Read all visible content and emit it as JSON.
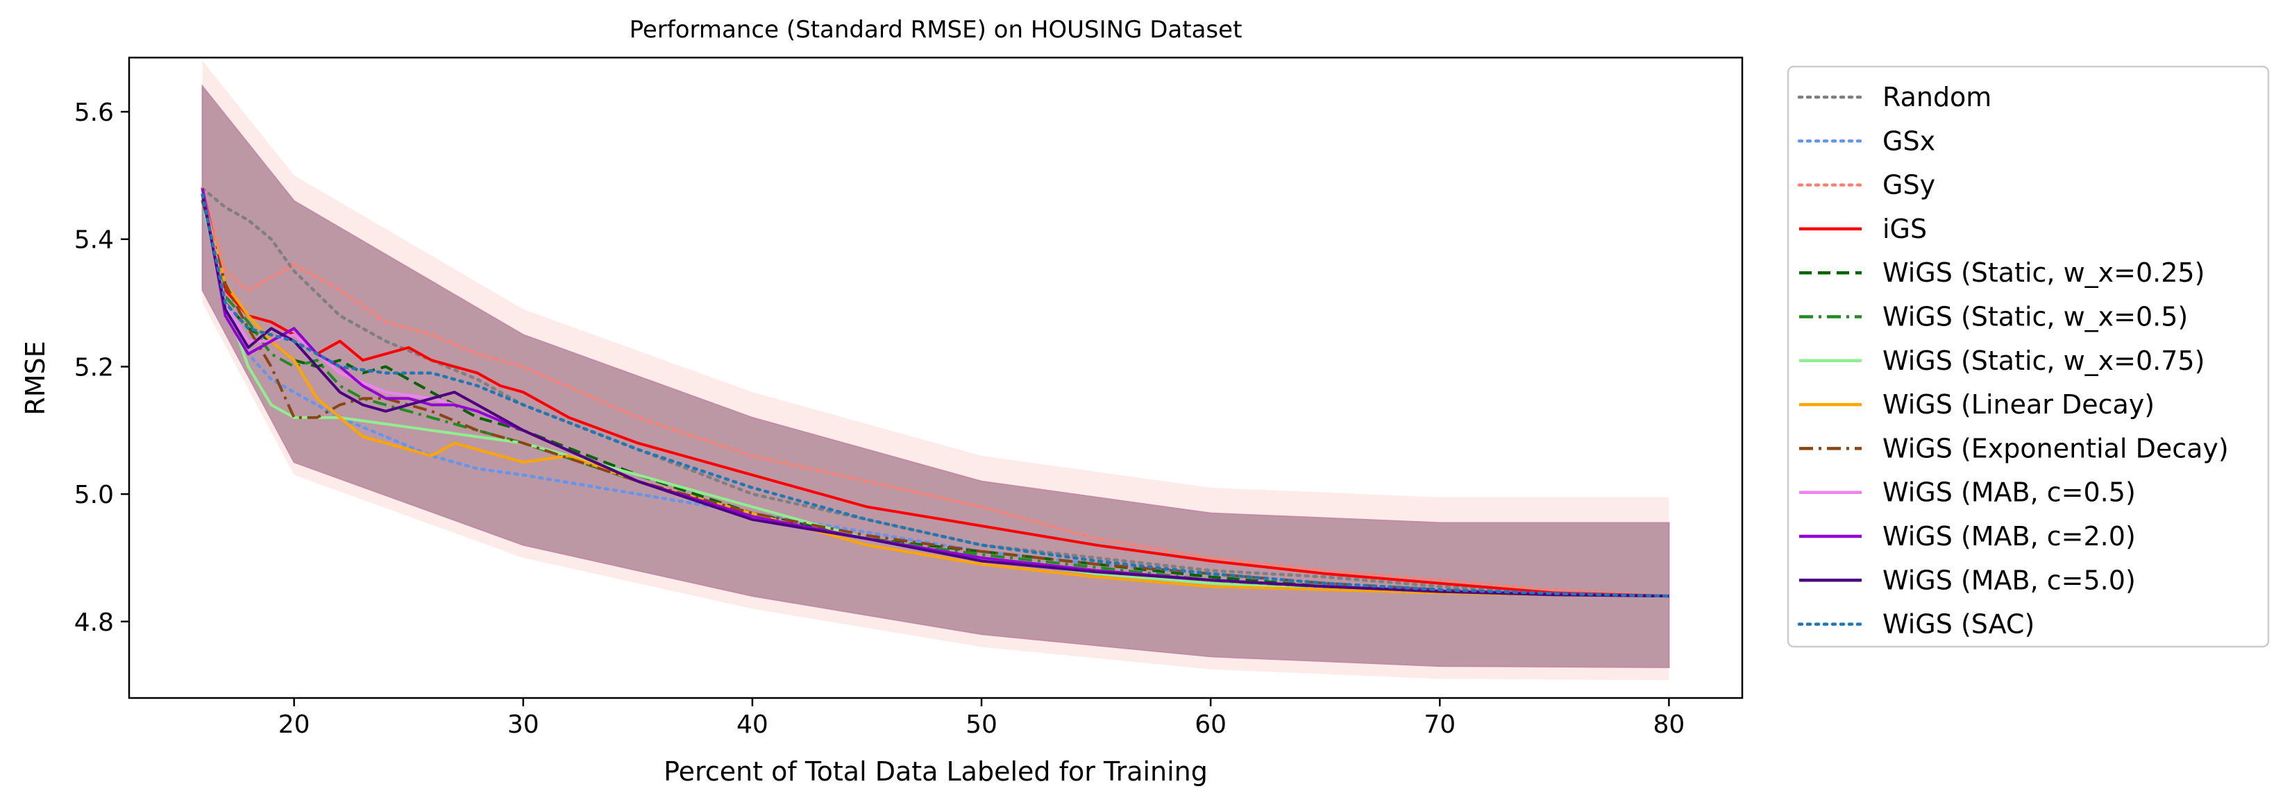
{
  "chart_data": {
    "type": "line",
    "title": "Performance (Standard RMSE) on HOUSING Dataset",
    "xlabel": "Percent of Total Data Labeled for Training",
    "ylabel": "RMSE",
    "xlim": [
      12.8,
      83.2
    ],
    "ylim": [
      4.68,
      5.685
    ],
    "xticks": [
      20,
      30,
      40,
      50,
      60,
      70,
      80
    ],
    "yticks": [
      4.8,
      5.0,
      5.2,
      5.4,
      5.6
    ],
    "xtick_labels": [
      "20",
      "30",
      "40",
      "50",
      "60",
      "70",
      "80"
    ],
    "ytick_labels": [
      "4.8",
      "5.0",
      "5.2",
      "5.4",
      "5.6"
    ],
    "grid": false,
    "legend_position": "outside-right",
    "shaded_band": {
      "description_in_chart": "standard deviation bands around each series",
      "upper": [
        [
          16,
          5.64
        ],
        [
          20,
          5.46
        ],
        [
          30,
          5.25
        ],
        [
          40,
          5.12
        ],
        [
          50,
          5.02
        ],
        [
          60,
          4.97
        ],
        [
          70,
          4.955
        ],
        [
          80,
          4.955
        ]
      ],
      "lower": [
        [
          16,
          5.32
        ],
        [
          20,
          5.05
        ],
        [
          30,
          4.92
        ],
        [
          40,
          4.84
        ],
        [
          50,
          4.78
        ],
        [
          60,
          4.745
        ],
        [
          70,
          4.73
        ],
        [
          80,
          4.728
        ]
      ]
    },
    "series": [
      {
        "name": "Random",
        "color": "#7f7f7f",
        "dash": "dotted",
        "x": [
          16,
          17,
          18,
          19,
          20,
          22,
          24,
          26,
          28,
          30,
          35,
          40,
          45,
          50,
          55,
          60,
          65,
          70,
          75,
          80
        ],
        "y": [
          5.48,
          5.45,
          5.43,
          5.4,
          5.35,
          5.28,
          5.24,
          5.21,
          5.18,
          5.14,
          5.07,
          5.0,
          4.96,
          4.92,
          4.9,
          4.88,
          4.87,
          4.855,
          4.845,
          4.84
        ]
      },
      {
        "name": "GSx",
        "color": "#6495ed",
        "dash": "dotted",
        "x": [
          16,
          17,
          18,
          19,
          20,
          22,
          24,
          26,
          28,
          30,
          35,
          40,
          45,
          50,
          55,
          60,
          65,
          70,
          75,
          80
        ],
        "y": [
          5.46,
          5.3,
          5.22,
          5.18,
          5.16,
          5.12,
          5.09,
          5.06,
          5.04,
          5.03,
          5.0,
          4.97,
          4.94,
          4.91,
          4.89,
          4.875,
          4.86,
          4.85,
          4.845,
          4.84
        ]
      },
      {
        "name": "GSy",
        "color": "#fa8072",
        "dash": "dotted",
        "x": [
          16,
          17,
          18,
          19,
          20,
          22,
          24,
          26,
          28,
          30,
          35,
          40,
          45,
          50,
          55,
          60,
          65,
          70,
          75,
          80
        ],
        "y": [
          5.48,
          5.35,
          5.32,
          5.34,
          5.36,
          5.32,
          5.27,
          5.25,
          5.22,
          5.2,
          5.12,
          5.06,
          5.02,
          4.98,
          4.93,
          4.9,
          4.88,
          4.865,
          4.85,
          4.84
        ]
      },
      {
        "name": "iGS",
        "color": "#ff0000",
        "dash": "solid",
        "x": [
          16,
          17,
          18,
          19,
          20,
          21,
          22,
          23,
          24,
          25,
          26,
          27,
          28,
          29,
          30,
          32,
          35,
          38,
          40,
          43,
          45,
          50,
          55,
          60,
          65,
          70,
          75,
          80
        ],
        "y": [
          5.48,
          5.32,
          5.28,
          5.27,
          5.25,
          5.22,
          5.24,
          5.21,
          5.22,
          5.23,
          5.21,
          5.2,
          5.19,
          5.17,
          5.16,
          5.12,
          5.08,
          5.05,
          5.03,
          5.0,
          4.98,
          4.95,
          4.92,
          4.895,
          4.875,
          4.86,
          4.845,
          4.84
        ]
      },
      {
        "name": "WiGS (Static, w_x=0.25)",
        "color": "#006400",
        "dash": "dashed",
        "x": [
          16,
          17,
          18,
          19,
          20,
          21,
          22,
          23,
          24,
          25,
          26,
          27,
          28,
          30,
          35,
          40,
          45,
          50,
          55,
          60,
          65,
          70,
          75,
          80
        ],
        "y": [
          5.48,
          5.3,
          5.26,
          5.24,
          5.21,
          5.2,
          5.21,
          5.19,
          5.2,
          5.18,
          5.16,
          5.14,
          5.12,
          5.1,
          5.03,
          4.97,
          4.93,
          4.91,
          4.89,
          4.87,
          4.855,
          4.845,
          4.842,
          4.84
        ]
      },
      {
        "name": "WiGS (Static, w_x=0.5)",
        "color": "#228b22",
        "dash": "dashdot",
        "x": [
          16,
          17,
          18,
          19,
          20,
          21,
          22,
          23,
          24,
          25,
          26,
          28,
          30,
          35,
          40,
          45,
          50,
          55,
          60,
          65,
          70,
          75,
          80
        ],
        "y": [
          5.48,
          5.31,
          5.27,
          5.22,
          5.2,
          5.21,
          5.17,
          5.15,
          5.14,
          5.13,
          5.12,
          5.1,
          5.08,
          5.02,
          4.96,
          4.93,
          4.905,
          4.885,
          4.865,
          4.85,
          4.845,
          4.842,
          4.84
        ]
      },
      {
        "name": "WiGS (Static, w_x=0.75)",
        "color": "#90ee90",
        "dash": "solid",
        "x": [
          16,
          17,
          18,
          19,
          20,
          22,
          24,
          26,
          28,
          30,
          35,
          40,
          45,
          50,
          55,
          60,
          65,
          70,
          75,
          80
        ],
        "y": [
          5.46,
          5.3,
          5.2,
          5.14,
          5.12,
          5.12,
          5.11,
          5.1,
          5.09,
          5.08,
          5.03,
          4.98,
          4.93,
          4.9,
          4.875,
          4.86,
          4.85,
          4.845,
          4.842,
          4.84
        ]
      },
      {
        "name": "WiGS (Linear Decay)",
        "color": "#ffa500",
        "dash": "solid",
        "x": [
          16,
          17,
          18,
          19,
          20,
          21,
          22,
          23,
          24,
          25,
          26,
          27,
          28,
          29,
          30,
          32,
          35,
          40,
          45,
          50,
          55,
          60,
          65,
          70,
          75,
          80
        ],
        "y": [
          5.47,
          5.33,
          5.28,
          5.24,
          5.21,
          5.15,
          5.12,
          5.09,
          5.08,
          5.07,
          5.06,
          5.08,
          5.07,
          5.06,
          5.05,
          5.06,
          5.02,
          4.97,
          4.92,
          4.89,
          4.87,
          4.855,
          4.85,
          4.845,
          4.842,
          4.84
        ]
      },
      {
        "name": "WiGS (Exponential Decay)",
        "color": "#8b4513",
        "dash": "dashdot",
        "x": [
          16,
          17,
          18,
          19,
          20,
          21,
          22,
          23,
          24,
          25,
          26,
          28,
          30,
          35,
          40,
          45,
          50,
          55,
          60,
          65,
          70,
          75,
          80
        ],
        "y": [
          5.46,
          5.33,
          5.26,
          5.2,
          5.12,
          5.12,
          5.14,
          5.15,
          5.15,
          5.14,
          5.13,
          5.1,
          5.08,
          5.02,
          4.97,
          4.935,
          4.91,
          4.89,
          4.875,
          4.86,
          4.85,
          4.842,
          4.84
        ]
      },
      {
        "name": "WiGS (MAB, c=0.5)",
        "color": "#ee82ee",
        "dash": "solid",
        "x": [
          16,
          17,
          18,
          19,
          20,
          22,
          24,
          26,
          28,
          30,
          35,
          40,
          45,
          50,
          55,
          60,
          65,
          70,
          75,
          80
        ],
        "y": [
          5.48,
          5.3,
          5.24,
          5.24,
          5.25,
          5.19,
          5.16,
          5.15,
          5.13,
          5.1,
          5.02,
          4.96,
          4.93,
          4.9,
          4.88,
          4.865,
          4.855,
          4.848,
          4.843,
          4.84
        ]
      },
      {
        "name": "WiGS (MAB, c=2.0)",
        "color": "#9400d3",
        "dash": "solid",
        "x": [
          16,
          17,
          18,
          19,
          20,
          21,
          22,
          23,
          24,
          25,
          26,
          27,
          28,
          30,
          35,
          40,
          45,
          50,
          55,
          60,
          65,
          70,
          75,
          80
        ],
        "y": [
          5.48,
          5.28,
          5.22,
          5.24,
          5.26,
          5.22,
          5.2,
          5.17,
          5.15,
          5.15,
          5.14,
          5.14,
          5.13,
          5.1,
          5.02,
          4.965,
          4.93,
          4.9,
          4.88,
          4.865,
          4.855,
          4.848,
          4.843,
          4.84
        ]
      },
      {
        "name": "WiGS (MAB, c=5.0)",
        "color": "#4b0082",
        "dash": "solid",
        "x": [
          16,
          17,
          18,
          19,
          20,
          21,
          22,
          23,
          24,
          25,
          26,
          27,
          28,
          30,
          35,
          40,
          45,
          50,
          55,
          60,
          65,
          70,
          75,
          80
        ],
        "y": [
          5.47,
          5.29,
          5.23,
          5.26,
          5.24,
          5.2,
          5.16,
          5.14,
          5.13,
          5.14,
          5.15,
          5.16,
          5.14,
          5.1,
          5.02,
          4.96,
          4.93,
          4.895,
          4.878,
          4.865,
          4.855,
          4.847,
          4.842,
          4.84
        ]
      },
      {
        "name": "WiGS (SAC)",
        "color": "#1f77b4",
        "dash": "dotted",
        "x": [
          16,
          17,
          18,
          19,
          20,
          22,
          24,
          26,
          28,
          30,
          35,
          40,
          45,
          50,
          55,
          60,
          65,
          70,
          75,
          80
        ],
        "y": [
          5.47,
          5.3,
          5.26,
          5.25,
          5.24,
          5.2,
          5.19,
          5.19,
          5.17,
          5.14,
          5.07,
          5.01,
          4.96,
          4.92,
          4.895,
          4.875,
          4.86,
          4.85,
          4.844,
          4.84
        ]
      }
    ]
  }
}
